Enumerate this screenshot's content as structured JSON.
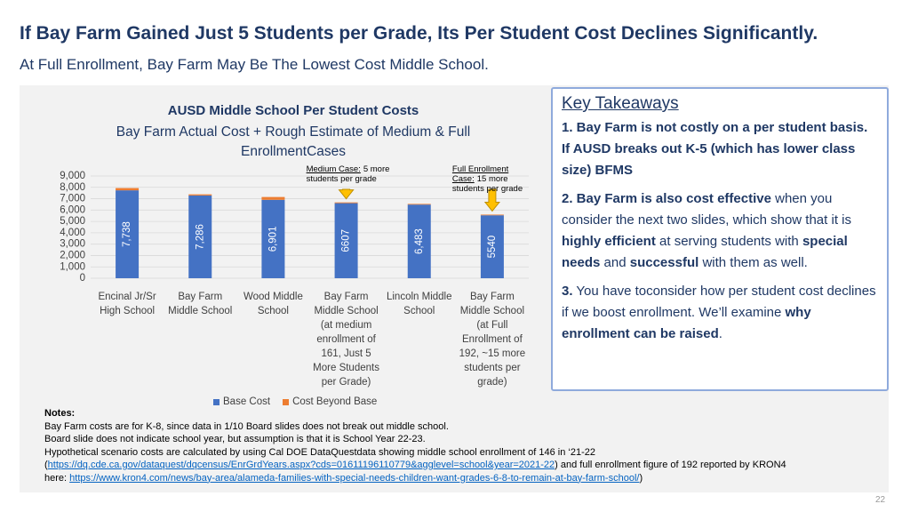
{
  "header": {
    "title": "If Bay Farm Gained Just 5 Students per Grade, Its Per Student Cost Declines Significantly.",
    "subtitle": "At Full Enrollment, Bay Farm May Be The Lowest Cost Middle School."
  },
  "chart_data": {
    "type": "stacked-bar",
    "title": "AUSD Middle School Per Student Costs",
    "subtitle": "Bay Farm Actual Cost + Rough Estimate of Medium & Full EnrollmentCases",
    "categories": [
      "Encinal Jr/Sr High School",
      "Bay Farm Middle School",
      "Wood Middle School",
      "Bay Farm Middle School (at medium enrollment of 161, Just 5 More Students per Grade)",
      "Lincoln Middle School",
      "Bay Farm Middle School (at Full Enrollment of 192, ~15 more students per grade)"
    ],
    "series": [
      {
        "name": "Base Cost",
        "color": "#4472c4",
        "values": [
          7738,
          7286,
          6901,
          6607,
          6483,
          5540
        ],
        "value_labels": [
          "7,738",
          "7,286",
          "6,901",
          "6607",
          "6,483",
          "5540"
        ]
      },
      {
        "name": "Cost Beyond Base",
        "color": "#ed7d31",
        "values": [
          200,
          100,
          250,
          70,
          60,
          60
        ]
      }
    ],
    "ylim": [
      0,
      9000
    ],
    "yticks": [
      0,
      {
        "value": 1000,
        "label": "1,000"
      },
      {
        "value": 2000,
        "label": "2,000"
      },
      {
        "value": 3000,
        "label": "3,000"
      },
      {
        "value": 4000,
        "label": "4,000"
      },
      {
        "value": 5000,
        "label": "5,000"
      },
      {
        "value": 6000,
        "label": "6,000"
      },
      {
        "value": 7000,
        "label": "7,000"
      },
      {
        "value": 8000,
        "label": "8,000"
      },
      {
        "value": 9000,
        "label": "9,000"
      }
    ],
    "grid": true,
    "annotations": [
      {
        "lead": "Medium Case:",
        "text": "5 more students per grade"
      },
      {
        "lead": "Full Enrollment Case:",
        "text": "15 more students per grade"
      }
    ]
  },
  "takeaways": {
    "heading": "Key Takeaways",
    "paragraphs": [
      [
        {
          "text": "1. Bay Farm is not costly on a per student basis. If AUSD breaks out K-5 (which has lower class size) BFMS",
          "bold": true
        }
      ],
      [
        {
          "text": "2. Bay Farm is also cost effective",
          "bold": true
        },
        {
          "text": " when you consider the next two slides, which show that it is ",
          "bold": false
        },
        {
          "text": "highly efficient",
          "bold": true
        },
        {
          "text": " at serving students with ",
          "bold": false
        },
        {
          "text": "special needs",
          "bold": true
        },
        {
          "text": " and ",
          "bold": false
        },
        {
          "text": "successful",
          "bold": true
        },
        {
          "text": " with them as well.",
          "bold": false
        }
      ],
      [
        {
          "text": "3.",
          "bold": true
        },
        {
          "text": " You have toconsider how per student cost declines if we boost enrollment. We’ll examine ",
          "bold": false
        },
        {
          "text": "why enrollment can be raised",
          "bold": true
        },
        {
          "text": ".",
          "bold": false
        }
      ]
    ]
  },
  "notes": {
    "heading": "Notes:",
    "lines": [
      [
        {
          "text": "Bay Farm costs are for K-8, since data in 1/10 Board slides does not break out middle school.",
          "link": false
        }
      ],
      [
        {
          "text": "Board slide does not indicate school year, but assumption is that it is School Year 22-23.",
          "link": false
        }
      ],
      [
        {
          "text": "Hypothetical scenario costs are calculated by using Cal DOE DataQuestdata showing middle school enrollment of 146 in ‘21-22",
          "link": false
        }
      ],
      [
        {
          "text": "(",
          "link": false
        },
        {
          "text": "https://dq.cde.ca.gov/dataquest/dqcensus/EnrGrdYears.aspx?cds=01611196110779&agglevel=school&year=2021-22",
          "link": true
        },
        {
          "text": ") and full enrollment figure of 192 reported by KRON4",
          "link": false
        }
      ],
      [
        {
          "text": "here: ",
          "link": false
        },
        {
          "text": "https://www.kron4.com/news/bay-area/alameda-families-with-special-needs-children-want-grades-6-8-to-remain-at-bay-farm-school/",
          "link": true
        },
        {
          "text": ")",
          "link": false
        }
      ]
    ]
  },
  "page_number": "22"
}
